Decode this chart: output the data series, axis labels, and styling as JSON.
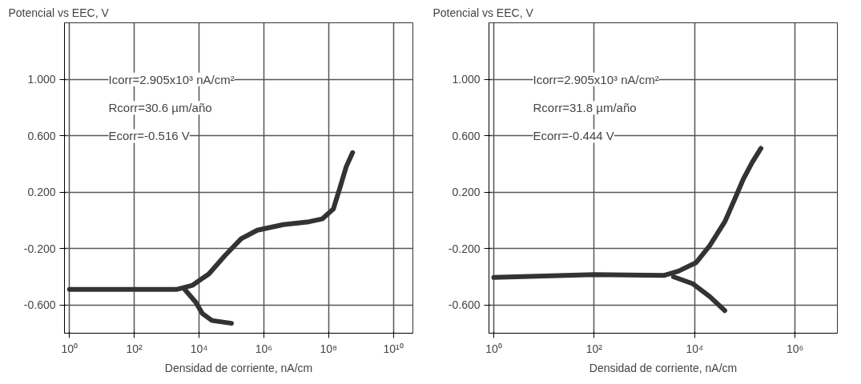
{
  "chart_data": [
    {
      "type": "line",
      "title": "Potencial vs EEC, V",
      "xlabel": "Densidad de corriente, nA/cm",
      "log": "x",
      "grid": true,
      "marker": "none",
      "line_style": "solid",
      "xlim": [
        0.7,
        40000000000
      ],
      "ylim": [
        -0.8,
        1.4
      ],
      "xticks": [
        {
          "value": 1,
          "label": "10⁰"
        },
        {
          "value": 100,
          "label": "10²"
        },
        {
          "value": 10000,
          "label": "10⁴"
        },
        {
          "value": 1000000,
          "label": "10⁶"
        },
        {
          "value": 100000000,
          "label": "10⁸"
        },
        {
          "value": 10000000000,
          "label": "10¹⁰"
        }
      ],
      "yticks": [
        {
          "value": 1.0,
          "label": "1.000"
        },
        {
          "value": 0.6,
          "label": "0.600"
        },
        {
          "value": 0.2,
          "label": "0.200"
        },
        {
          "value": -0.2,
          "label": "-0.200"
        },
        {
          "value": -0.6,
          "label": "-0.600"
        }
      ],
      "annotations": [
        "Icorr=2.905x10³ nA/cm²",
        "Rcorr=30.6 µm/año",
        "Ecorr=-0.516 V"
      ],
      "series": [
        {
          "color": "#333333",
          "x": [
            1,
            93,
            2000,
            6300,
            20000,
            63000,
            200000,
            630000,
            4000000,
            25000000,
            63000000,
            140000000,
            230000000,
            350000000,
            550000000
          ],
          "values": [
            -0.49,
            -0.49,
            -0.49,
            -0.46,
            -0.38,
            -0.25,
            -0.13,
            -0.07,
            -0.03,
            -0.01,
            0.01,
            0.08,
            0.24,
            0.38,
            0.48
          ]
        },
        {
          "color": "#333333",
          "x": [
            3600,
            7900,
            12600,
            25000,
            100000
          ],
          "values": [
            -0.49,
            -0.58,
            -0.66,
            -0.71,
            -0.73
          ]
        }
      ]
    },
    {
      "type": "line",
      "title": "Potencial vs EEC, V",
      "xlabel": "Densidad de corriente, nA/cm",
      "log": "x",
      "grid": true,
      "marker": "none",
      "line_style": "solid",
      "xlim": [
        0.8,
        7000000
      ],
      "ylim": [
        -0.8,
        1.4
      ],
      "xticks": [
        {
          "value": 1,
          "label": "10⁰"
        },
        {
          "value": 100,
          "label": "10²"
        },
        {
          "value": 10000,
          "label": "10⁴"
        },
        {
          "value": 1000000,
          "label": "10⁶"
        }
      ],
      "yticks": [
        {
          "value": 1.0,
          "label": "1.000"
        },
        {
          "value": 0.6,
          "label": "0.600"
        },
        {
          "value": 0.2,
          "label": "0.200"
        },
        {
          "value": -0.2,
          "label": "-0.200"
        },
        {
          "value": -0.6,
          "label": "-0.600"
        }
      ],
      "annotations": [
        "Icorr=2.905x10³ nA/cm²",
        "Rcorr=31.8 µm/año",
        "Ecorr=-0.444 V"
      ],
      "series": [
        {
          "color": "#333333",
          "x": [
            1,
            100,
            2500,
            4800,
            10700,
            20000,
            40000,
            63000,
            93000,
            140000,
            210000
          ],
          "values": [
            -0.405,
            -0.385,
            -0.39,
            -0.36,
            -0.3,
            -0.18,
            -0.01,
            0.15,
            0.29,
            0.41,
            0.51
          ]
        },
        {
          "color": "#333333",
          "x": [
            3800,
            9300,
            20000,
            40000
          ],
          "values": [
            -0.4,
            -0.45,
            -0.54,
            -0.64
          ]
        }
      ]
    }
  ]
}
